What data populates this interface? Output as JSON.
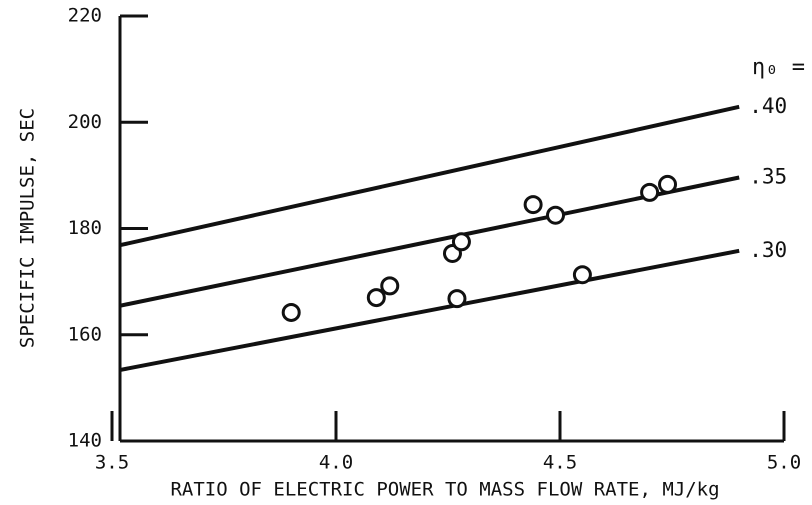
{
  "chart_data": {
    "type": "scatter",
    "x_label": "RATIO OF ELECTRIC POWER TO MASS FLOW RATE, MJ/kg",
    "y_label": "SPECIFIC IMPULSE, SEC",
    "annotation": "η₀ =",
    "xlim": [
      3.5,
      5.0
    ],
    "xticks": [
      {
        "value": 3.5,
        "label": "3.5"
      },
      {
        "value": 4.0,
        "label": "4.0"
      },
      {
        "value": 4.5,
        "label": "4.5"
      },
      {
        "value": 5.0,
        "label": "5.0"
      }
    ],
    "ylim": [
      140,
      220
    ],
    "yticks": [
      140,
      160,
      180,
      200,
      220
    ],
    "grid": false,
    "color": "#111111",
    "points": {
      "x": [
        3.9,
        4.09,
        4.12,
        4.26,
        4.28,
        4.27,
        4.44,
        4.49,
        4.55,
        4.7,
        4.74
      ],
      "y": [
        164.2,
        167.0,
        169.2,
        175.3,
        177.5,
        166.8,
        184.5,
        182.5,
        171.3,
        186.8,
        188.3
      ]
    },
    "lines": [
      {
        "name": ".40",
        "x": [
          3.52,
          4.9
        ],
        "values": [
          176.9,
          202.9
        ]
      },
      {
        "name": ".35",
        "x": [
          3.52,
          4.9
        ],
        "values": [
          165.5,
          189.6
        ]
      },
      {
        "name": ".30",
        "x": [
          3.52,
          4.9
        ],
        "values": [
          153.4,
          175.8
        ]
      }
    ]
  }
}
